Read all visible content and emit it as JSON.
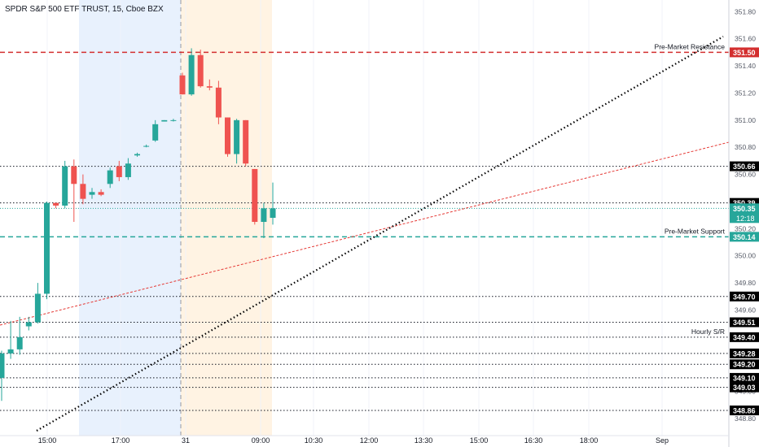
{
  "header": {
    "title": "SPDR S&P 500 ETF TRUST, 15, Cboe BZX"
  },
  "colors": {
    "up": "#26a69a",
    "down": "#ef5350",
    "support": "#26a69a",
    "resistance": "#d32f2f",
    "level": "#131722",
    "grid": "#e0e3eb",
    "trend": "#000000",
    "trend2": "#e53935",
    "session_premarket": "#e8f1fd",
    "session_early": "#fff3e3"
  },
  "chart_data": {
    "type": "candlestick",
    "title": "SPDR S&P 500 ETF TRUST, 15, Cboe BZX",
    "x_ticks": [
      "15:00",
      "17:00",
      "31",
      "09:00",
      "10:30",
      "12:00",
      "13:30",
      "15:00",
      "16:30",
      "18:00",
      "Sep"
    ],
    "y_ticks": [
      "351.80",
      "351.60",
      "351.40",
      "351.20",
      "351.00",
      "350.80",
      "350.60",
      "350.40",
      "350.20",
      "350.00",
      "349.80",
      "349.60",
      "349.40",
      "349.20",
      "349.00",
      "348.80"
    ],
    "ylim": [
      348.74,
      351.88
    ],
    "candles": [
      {
        "o": 349.1,
        "h": 349.3,
        "l": 348.93,
        "c": 349.28
      },
      {
        "o": 349.28,
        "h": 349.52,
        "l": 349.24,
        "c": 349.31
      },
      {
        "o": 349.31,
        "h": 349.55,
        "l": 349.27,
        "c": 349.4
      },
      {
        "o": 349.48,
        "h": 349.55,
        "l": 349.45,
        "c": 349.51
      },
      {
        "o": 349.51,
        "h": 349.8,
        "l": 349.5,
        "c": 349.72
      },
      {
        "o": 349.72,
        "h": 350.4,
        "l": 349.68,
        "c": 350.39
      },
      {
        "o": 350.39,
        "h": 350.39,
        "l": 350.35,
        "c": 350.37
      },
      {
        "o": 350.37,
        "h": 350.7,
        "l": 350.35,
        "c": 350.66
      },
      {
        "o": 350.66,
        "h": 350.71,
        "l": 350.25,
        "c": 350.53
      },
      {
        "o": 350.53,
        "h": 350.6,
        "l": 350.38,
        "c": 350.42
      },
      {
        "o": 350.45,
        "h": 350.5,
        "l": 350.42,
        "c": 350.47
      },
      {
        "o": 350.47,
        "h": 350.49,
        "l": 350.44,
        "c": 350.45
      },
      {
        "o": 350.53,
        "h": 350.65,
        "l": 350.5,
        "c": 350.63
      },
      {
        "o": 350.66,
        "h": 350.7,
        "l": 350.55,
        "c": 350.58
      },
      {
        "o": 350.58,
        "h": 350.72,
        "l": 350.56,
        "c": 350.68
      },
      {
        "o": 350.74,
        "h": 350.76,
        "l": 350.73,
        "c": 350.75
      },
      {
        "o": 350.81,
        "h": 350.82,
        "l": 350.8,
        "c": 350.81
      },
      {
        "o": 350.85,
        "h": 351.0,
        "l": 350.84,
        "c": 350.97
      },
      {
        "o": 350.99,
        "h": 351.0,
        "l": 350.99,
        "c": 351.0
      },
      {
        "o": 351.0,
        "h": 351.01,
        "l": 350.99,
        "c": 351.0
      },
      {
        "o": 351.33,
        "h": 351.35,
        "l": 351.19,
        "c": 351.19
      },
      {
        "o": 351.19,
        "h": 351.53,
        "l": 351.18,
        "c": 351.48
      },
      {
        "o": 351.48,
        "h": 351.52,
        "l": 351.24,
        "c": 351.25
      },
      {
        "o": 351.25,
        "h": 351.3,
        "l": 351.22,
        "c": 351.24
      },
      {
        "o": 351.24,
        "h": 351.29,
        "l": 350.97,
        "c": 351.02
      },
      {
        "o": 351.02,
        "h": 351.02,
        "l": 350.73,
        "c": 350.75
      },
      {
        "o": 350.75,
        "h": 351.01,
        "l": 350.68,
        "c": 351.0
      },
      {
        "o": 351.0,
        "h": 351.0,
        "l": 350.66,
        "c": 350.68
      },
      {
        "o": 350.64,
        "h": 350.64,
        "l": 350.23,
        "c": 350.25
      },
      {
        "o": 350.25,
        "h": 350.39,
        "l": 350.13,
        "c": 350.35
      },
      {
        "o": 350.28,
        "h": 350.54,
        "l": 350.23,
        "c": 350.35
      }
    ],
    "horizontal_levels": [
      {
        "price": 351.5,
        "label": "351.50",
        "style": "resistance",
        "annotation": "Pre-Market Resistance"
      },
      {
        "price": 350.66,
        "label": "350.66",
        "style": "level",
        "annotation": ""
      },
      {
        "price": 350.39,
        "label": "350.39",
        "style": "level",
        "annotation": ""
      },
      {
        "price": 350.14,
        "label": "350.14",
        "style": "support",
        "annotation": "Pre-Market Support"
      },
      {
        "price": 349.7,
        "label": "349.70",
        "style": "level",
        "annotation": ""
      },
      {
        "price": 349.51,
        "label": "349.51",
        "style": "level",
        "annotation": ""
      },
      {
        "price": 349.4,
        "label": "349.40",
        "style": "level",
        "annotation": "Hourly S/R"
      },
      {
        "price": 349.28,
        "label": "349.28",
        "style": "level",
        "annotation": ""
      },
      {
        "price": 349.2,
        "label": "349.20",
        "style": "level",
        "annotation": ""
      },
      {
        "price": 349.1,
        "label": "349.10",
        "style": "level",
        "annotation": ""
      },
      {
        "price": 349.03,
        "label": "349.03",
        "style": "level",
        "annotation": ""
      },
      {
        "price": 348.86,
        "label": "348.86",
        "style": "level",
        "annotation": ""
      }
    ],
    "last_price": {
      "price": 350.35,
      "label": "350.35",
      "countdown": "12:18"
    },
    "legend": "none"
  }
}
